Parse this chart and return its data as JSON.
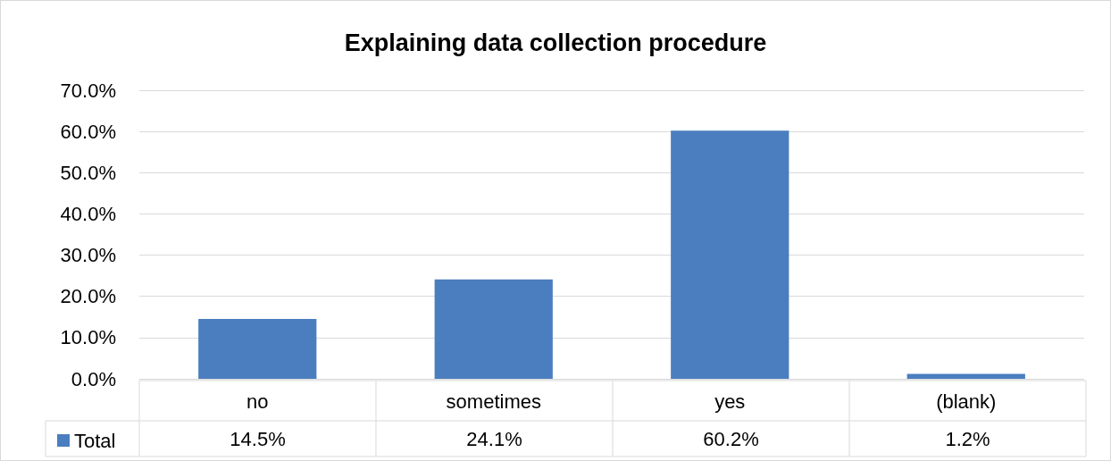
{
  "chart_data": {
    "type": "bar",
    "title": "Explaining data collection procedure",
    "categories": [
      "no",
      "sometimes",
      "yes",
      "(blank)"
    ],
    "series": [
      {
        "name": "Total",
        "color": "#4a7ebf",
        "values": [
          14.5,
          24.1,
          60.2,
          1.2
        ],
        "value_labels": [
          "14.5%",
          "24.1%",
          "60.2%",
          "1.2%"
        ]
      }
    ],
    "ylim": [
      0,
      70
    ],
    "yticks": [
      {
        "value": 0,
        "label": "0.0%"
      },
      {
        "value": 10,
        "label": "10.0%"
      },
      {
        "value": 20,
        "label": "20.0%"
      },
      {
        "value": 30,
        "label": "30.0%"
      },
      {
        "value": 40,
        "label": "40.0%"
      },
      {
        "value": 50,
        "label": "50.0%"
      },
      {
        "value": 60,
        "label": "60.0%"
      },
      {
        "value": 70,
        "label": "70.0%"
      }
    ],
    "grid": "y",
    "legend": "bottom left"
  }
}
